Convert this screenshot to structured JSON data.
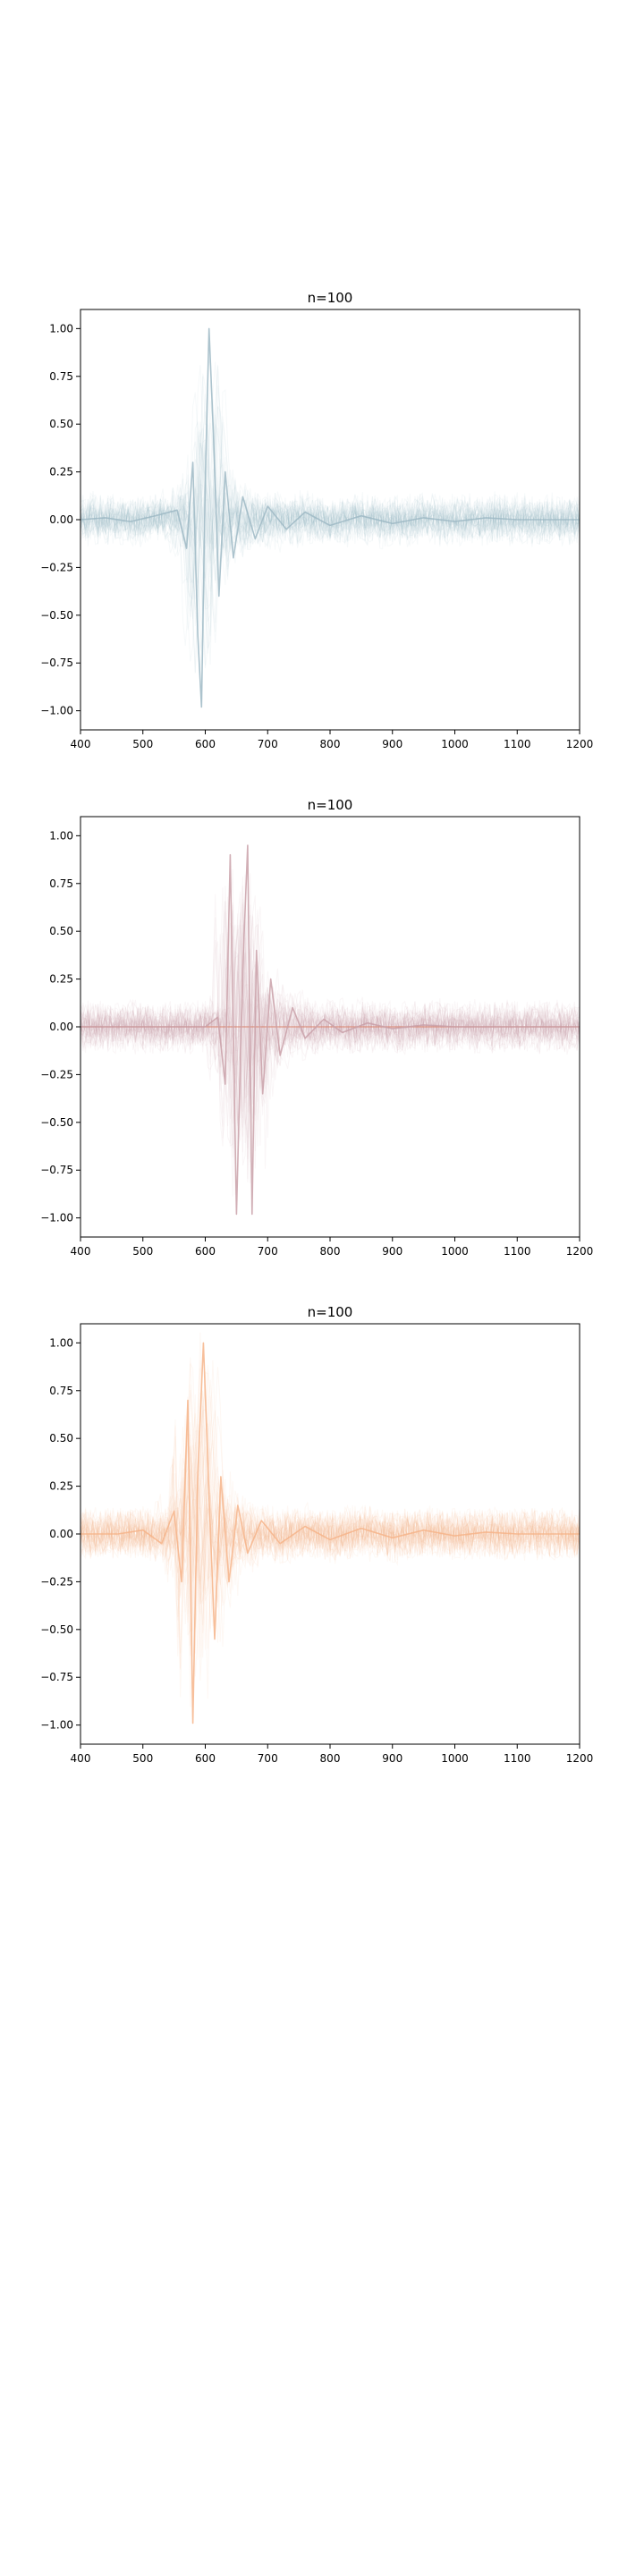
{
  "chart_data": [
    {
      "type": "line",
      "title": "n=100",
      "xlim": [
        400,
        1200
      ],
      "ylim": [
        -1.1,
        1.1
      ],
      "xticks": [
        400,
        500,
        600,
        700,
        800,
        900,
        1000,
        1100,
        1200
      ],
      "yticks": [
        1.0,
        0.75,
        0.5,
        0.25,
        0.0,
        -0.25,
        -0.5,
        -0.75,
        -1.0
      ],
      "ytick_labels": [
        "1.00",
        "0.75",
        "0.50",
        "0.25",
        "0.00",
        "−0.25",
        "−0.50",
        "−0.75",
        "−1.00"
      ],
      "grid": false,
      "color": "#9db8c4",
      "trace_count": 100,
      "representative_trace": {
        "x": [
          400,
          440,
          480,
          520,
          555,
          570,
          580,
          588,
          594,
          600,
          606,
          613,
          622,
          632,
          645,
          660,
          680,
          700,
          730,
          760,
          800,
          850,
          900,
          950,
          1000,
          1050,
          1100,
          1150,
          1200
        ],
        "y": [
          0.0,
          0.01,
          -0.01,
          0.02,
          0.05,
          -0.15,
          0.3,
          -0.6,
          -0.98,
          0.2,
          1.0,
          0.45,
          -0.4,
          0.25,
          -0.2,
          0.12,
          -0.1,
          0.07,
          -0.05,
          0.04,
          -0.03,
          0.02,
          -0.02,
          0.01,
          -0.01,
          0.01,
          0.0,
          0.0,
          0.0
        ]
      }
    },
    {
      "type": "line",
      "title": "n=100",
      "xlim": [
        400,
        1200
      ],
      "ylim": [
        -1.1,
        1.1
      ],
      "xticks": [
        400,
        500,
        600,
        700,
        800,
        900,
        1000,
        1100,
        1200
      ],
      "yticks": [
        1.0,
        0.75,
        0.5,
        0.25,
        0.0,
        -0.25,
        -0.5,
        -0.75,
        -1.0
      ],
      "ytick_labels": [
        "1.00",
        "0.75",
        "0.50",
        "0.25",
        "0.00",
        "−0.25",
        "−0.50",
        "−0.75",
        "−1.00"
      ],
      "grid": false,
      "color": "#c9a0a8",
      "baseline_color": "#d9826b",
      "trace_count": 100,
      "representative_trace": {
        "x": [
          400,
          500,
          600,
          620,
          632,
          640,
          650,
          660,
          668,
          675,
          682,
          692,
          705,
          720,
          740,
          760,
          790,
          820,
          860,
          900,
          950,
          1000,
          1100,
          1200
        ],
        "y": [
          0.0,
          0.0,
          0.0,
          0.05,
          -0.3,
          0.9,
          -0.98,
          0.3,
          0.95,
          -0.98,
          0.4,
          -0.35,
          0.25,
          -0.15,
          0.1,
          -0.06,
          0.04,
          -0.03,
          0.02,
          -0.01,
          0.01,
          0.0,
          0.0,
          0.0
        ]
      }
    },
    {
      "type": "line",
      "title": "n=100",
      "xlim": [
        400,
        1200
      ],
      "ylim": [
        -1.1,
        1.1
      ],
      "xticks": [
        400,
        500,
        600,
        700,
        800,
        900,
        1000,
        1100,
        1200
      ],
      "yticks": [
        1.0,
        0.75,
        0.5,
        0.25,
        0.0,
        -0.25,
        -0.5,
        -0.75,
        -1.0
      ],
      "ytick_labels": [
        "1.00",
        "0.75",
        "0.50",
        "0.25",
        "0.00",
        "−0.25",
        "−0.50",
        "−0.75",
        "−1.00"
      ],
      "grid": false,
      "color": "#f6b48a",
      "trace_count": 100,
      "representative_trace": {
        "x": [
          400,
          460,
          500,
          530,
          550,
          562,
          572,
          580,
          588,
          597,
          606,
          615,
          625,
          638,
          652,
          668,
          690,
          720,
          760,
          800,
          850,
          900,
          950,
          1000,
          1050,
          1100,
          1150,
          1200
        ],
        "y": [
          0.0,
          0.0,
          0.02,
          -0.05,
          0.12,
          -0.25,
          0.7,
          -0.99,
          0.3,
          1.0,
          0.2,
          -0.55,
          0.3,
          -0.25,
          0.15,
          -0.1,
          0.07,
          -0.05,
          0.04,
          -0.03,
          0.03,
          -0.02,
          0.02,
          -0.01,
          0.01,
          0.0,
          0.0,
          0.0
        ]
      }
    }
  ]
}
